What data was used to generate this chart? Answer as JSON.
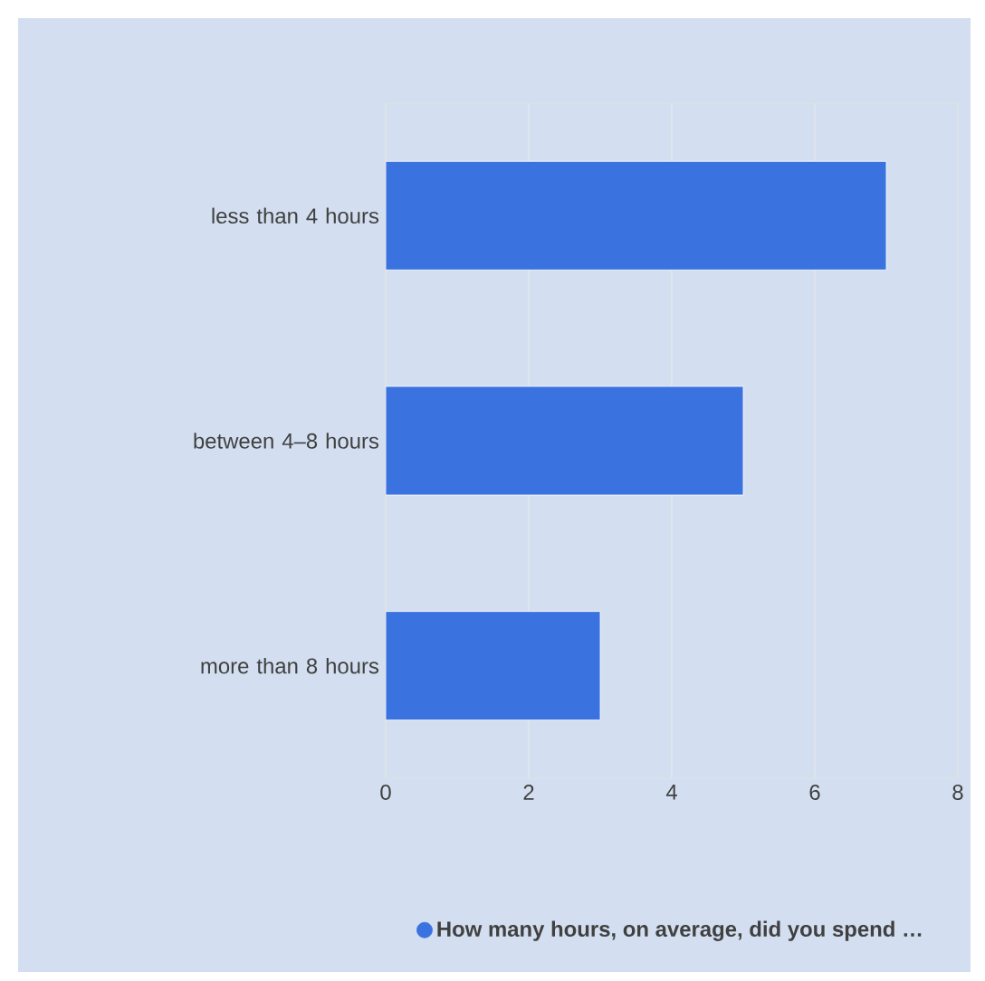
{
  "chart_data": {
    "type": "bar",
    "orientation": "horizontal",
    "categories": [
      "less than 4 hours",
      "between 4–8 hours",
      "more than 8 hours"
    ],
    "series": [
      {
        "name": "How many hours, on average, did you spend …",
        "color": "#3a72e0",
        "values": [
          7,
          5,
          3
        ]
      }
    ],
    "xlim": [
      0,
      8
    ],
    "xticks": [
      0,
      2,
      4,
      6,
      8
    ],
    "grid": "x",
    "legend": "bottom"
  }
}
